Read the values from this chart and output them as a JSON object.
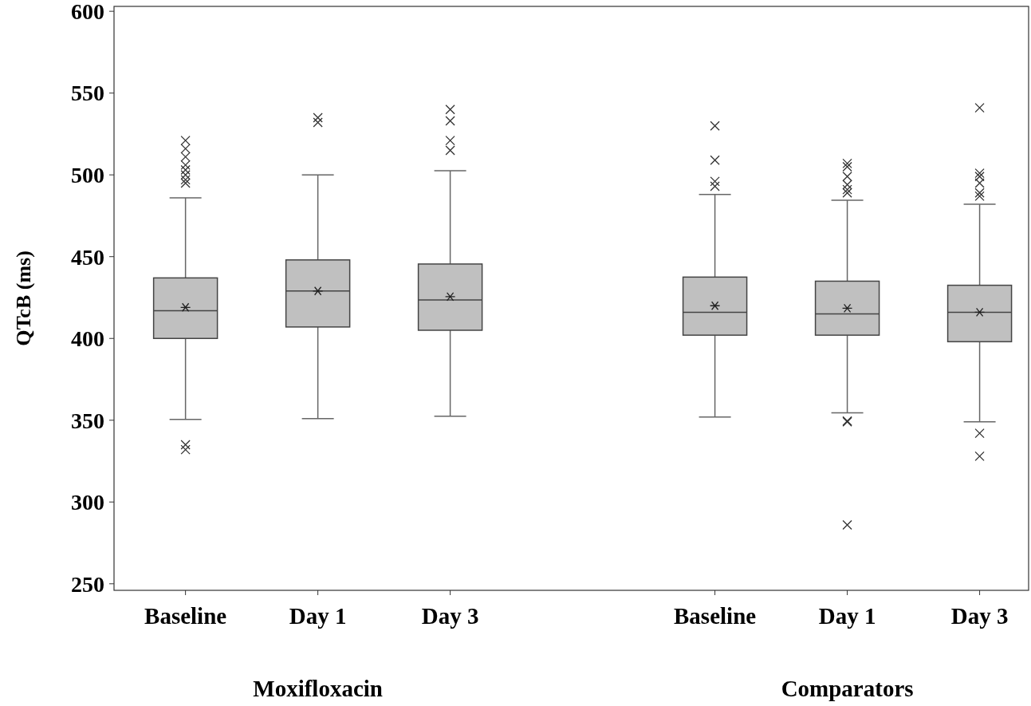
{
  "chart_data": {
    "type": "box",
    "ylabel": "QTcB (ms)",
    "categories": [
      "Baseline",
      "Day 1",
      "Day 3",
      "Baseline",
      "Day 1",
      "Day 3"
    ],
    "annotations": [
      "Moxifloxacin",
      "Comparators"
    ],
    "ylim": [
      246,
      603
    ],
    "yticks": [
      250,
      300,
      350,
      400,
      450,
      500,
      550,
      600
    ],
    "grid": false,
    "marker": "cross",
    "color": "#c0c0c0",
    "boxes": [
      {
        "low": 350.5,
        "q1": 400,
        "median": 417,
        "q3": 437,
        "high": 486,
        "mean": 419,
        "outliers": [
          521,
          516,
          511,
          506,
          503,
          500,
          497,
          495,
          335,
          332
        ]
      },
      {
        "low": 351,
        "q1": 407,
        "median": 429,
        "q3": 448,
        "high": 500,
        "mean": 429,
        "outliers": [
          535,
          532
        ]
      },
      {
        "low": 352.5,
        "q1": 405,
        "median": 423.5,
        "q3": 445.5,
        "high": 502.5,
        "mean": 425.5,
        "outliers": [
          540,
          533,
          521,
          515
        ]
      },
      {
        "low": 352,
        "q1": 402,
        "median": 416,
        "q3": 437.5,
        "high": 488,
        "mean": 420,
        "outliers": [
          530,
          509,
          496,
          493
        ]
      },
      {
        "low": 354.5,
        "q1": 402,
        "median": 415,
        "q3": 435,
        "high": 484.5,
        "mean": 418.5,
        "outliers": [
          507,
          505,
          499,
          494,
          491,
          489,
          349.5,
          349,
          286
        ]
      },
      {
        "low": 349,
        "q1": 398,
        "median": 416,
        "q3": 432.5,
        "high": 482,
        "mean": 416,
        "outliers": [
          541,
          501,
          499,
          495,
          489,
          487,
          342,
          328
        ]
      }
    ]
  }
}
